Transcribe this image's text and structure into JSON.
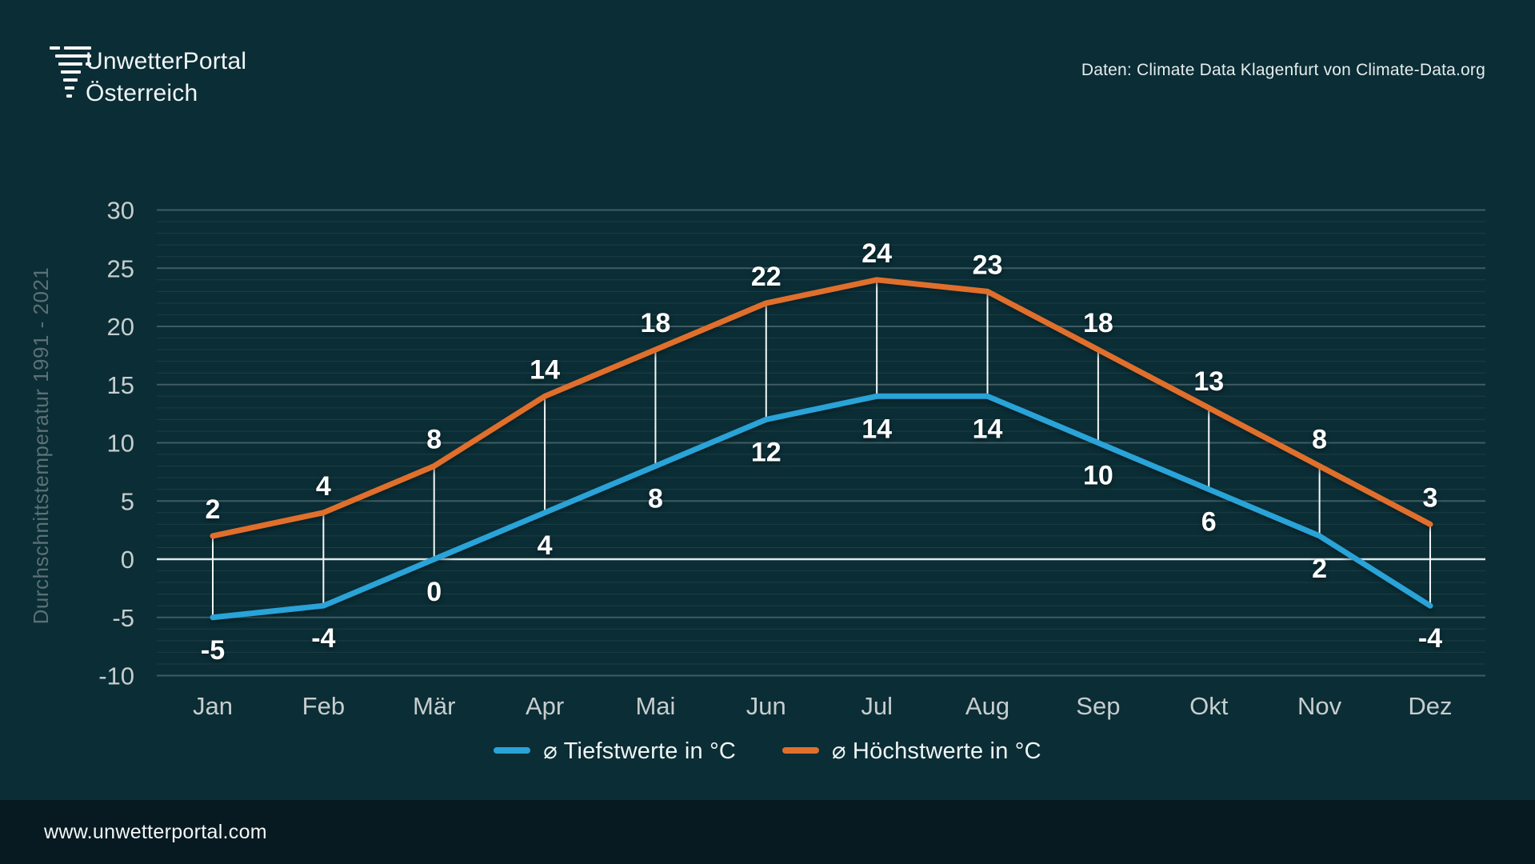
{
  "header": {
    "brand_line1": "UnwetterPortal",
    "brand_line2": "Österreich",
    "source_note": "Daten: Climate Data Klagenfurt von Climate-Data.org"
  },
  "footer": {
    "url": "www.unwetterportal.com"
  },
  "colors": {
    "background": "#0b2d35",
    "footer_bg": "#071a21",
    "low_line": "#29a3d8",
    "high_line": "#e06f2c",
    "grid_major": "rgba(220,235,238,0.25)",
    "grid_minor": "rgba(220,235,238,0.09)",
    "zero_line": "#dde8ea",
    "connector": "#f5f8f8",
    "tick_label": "#c6cdce",
    "axis_title": "#5a7076",
    "value_label": "#ffffff"
  },
  "chart_data": {
    "type": "line",
    "title": "",
    "categories": [
      "Jan",
      "Feb",
      "Mär",
      "Apr",
      "Mai",
      "Jun",
      "Jul",
      "Aug",
      "Sep",
      "Okt",
      "Nov",
      "Dez"
    ],
    "series": [
      {
        "name": "⌀ Tiefstwerte in °C",
        "values": [
          -5,
          -4,
          0,
          4,
          8,
          12,
          14,
          14,
          10,
          6,
          2,
          -4
        ],
        "color_key": "low_line",
        "label_placement": "below"
      },
      {
        "name": "⌀ Höchstwerte in °C",
        "values": [
          2,
          4,
          8,
          14,
          18,
          22,
          24,
          23,
          18,
          13,
          8,
          3
        ],
        "color_key": "high_line",
        "label_placement": "above"
      }
    ],
    "xlabel": "",
    "ylabel": "Durchschnittstemperatur 1991 - 2021",
    "ylim": [
      -10,
      30
    ],
    "ytick_step": 5,
    "minor_step": 1,
    "grid": true,
    "legend_position": "bottom",
    "connectors_between_series": true
  }
}
